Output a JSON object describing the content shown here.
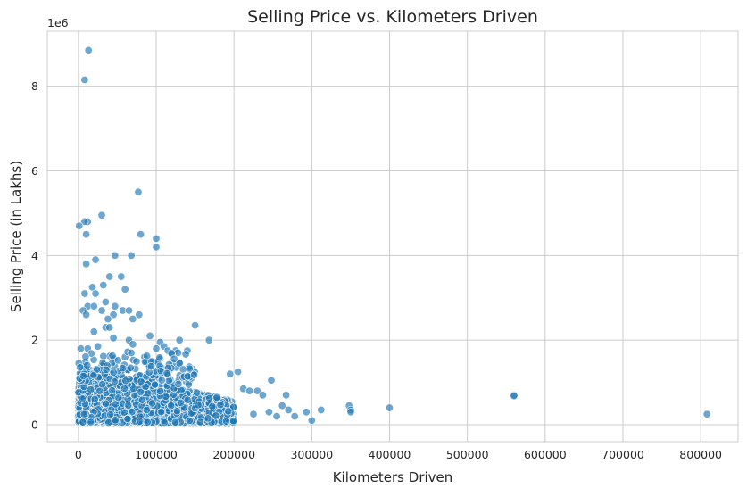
{
  "chart_data": {
    "type": "scatter",
    "title": "Selling Price vs. Kilometers Driven",
    "xlabel": "Kilometers Driven",
    "ylabel": "Selling Price (in Lakhs)",
    "y_offset_label": "1e6",
    "y_scale_factor": 1000000,
    "xlim": [
      -40000,
      848000
    ],
    "ylim": [
      -400000,
      9300000
    ],
    "x_ticks": [
      0,
      100000,
      200000,
      300000,
      400000,
      500000,
      600000,
      700000,
      800000
    ],
    "y_ticks": [
      0,
      2,
      4,
      6,
      8
    ],
    "grid": true,
    "color": "#1f77b4",
    "marker_alpha": 0.65,
    "series": [
      {
        "points": [
          [
            13000,
            8850000
          ],
          [
            8000,
            8150000
          ],
          [
            77000,
            5500000
          ],
          [
            30000,
            4950000
          ],
          [
            12000,
            4800000
          ],
          [
            8000,
            4800000
          ],
          [
            1000,
            4700000
          ],
          [
            10000,
            4500000
          ],
          [
            80000,
            4500000
          ],
          [
            100000,
            4400000
          ],
          [
            100000,
            4200000
          ],
          [
            47000,
            4000000
          ],
          [
            68000,
            4000000
          ],
          [
            10000,
            3800000
          ],
          [
            22000,
            3900000
          ],
          [
            40000,
            3500000
          ],
          [
            55000,
            3500000
          ],
          [
            32000,
            3300000
          ],
          [
            18000,
            3250000
          ],
          [
            22000,
            3100000
          ],
          [
            8000,
            3100000
          ],
          [
            60000,
            3200000
          ],
          [
            35000,
            2900000
          ],
          [
            12000,
            2800000
          ],
          [
            20000,
            2800000
          ],
          [
            47000,
            2800000
          ],
          [
            57000,
            2700000
          ],
          [
            65000,
            2700000
          ],
          [
            6000,
            2700000
          ],
          [
            30000,
            2700000
          ],
          [
            10000,
            2600000
          ],
          [
            45000,
            2600000
          ],
          [
            78000,
            2600000
          ],
          [
            70000,
            2500000
          ],
          [
            38000,
            2500000
          ],
          [
            150000,
            2350000
          ],
          [
            35000,
            2300000
          ],
          [
            40000,
            2300000
          ],
          [
            20000,
            2200000
          ],
          [
            92000,
            2100000
          ],
          [
            45000,
            2050000
          ],
          [
            65000,
            2000000
          ],
          [
            130000,
            2000000
          ],
          [
            168000,
            2000000
          ],
          [
            105000,
            1950000
          ],
          [
            110000,
            1850000
          ],
          [
            70000,
            1900000
          ],
          [
            3000,
            1800000
          ],
          [
            12000,
            1800000
          ],
          [
            25000,
            1850000
          ],
          [
            100000,
            1800000
          ],
          [
            115000,
            1750000
          ],
          [
            125000,
            1750000
          ],
          [
            140000,
            1750000
          ],
          [
            128000,
            1700000
          ],
          [
            85000,
            1600000
          ],
          [
            60000,
            1600000
          ],
          [
            195000,
            1200000
          ],
          [
            205000,
            1250000
          ],
          [
            212000,
            850000
          ],
          [
            220000,
            800000
          ],
          [
            230000,
            800000
          ],
          [
            248000,
            1050000
          ],
          [
            237000,
            700000
          ],
          [
            267000,
            700000
          ],
          [
            262000,
            450000
          ],
          [
            270000,
            350000
          ],
          [
            278000,
            200000
          ],
          [
            225000,
            250000
          ],
          [
            245000,
            300000
          ],
          [
            255000,
            200000
          ],
          [
            293000,
            300000
          ],
          [
            300000,
            100000
          ],
          [
            312000,
            350000
          ],
          [
            348000,
            450000
          ],
          [
            350000,
            350000
          ],
          [
            350000,
            300000
          ],
          [
            400000,
            400000
          ],
          [
            560000,
            700000
          ],
          [
            560000,
            680000
          ],
          [
            808000,
            250000
          ]
        ]
      }
    ]
  }
}
